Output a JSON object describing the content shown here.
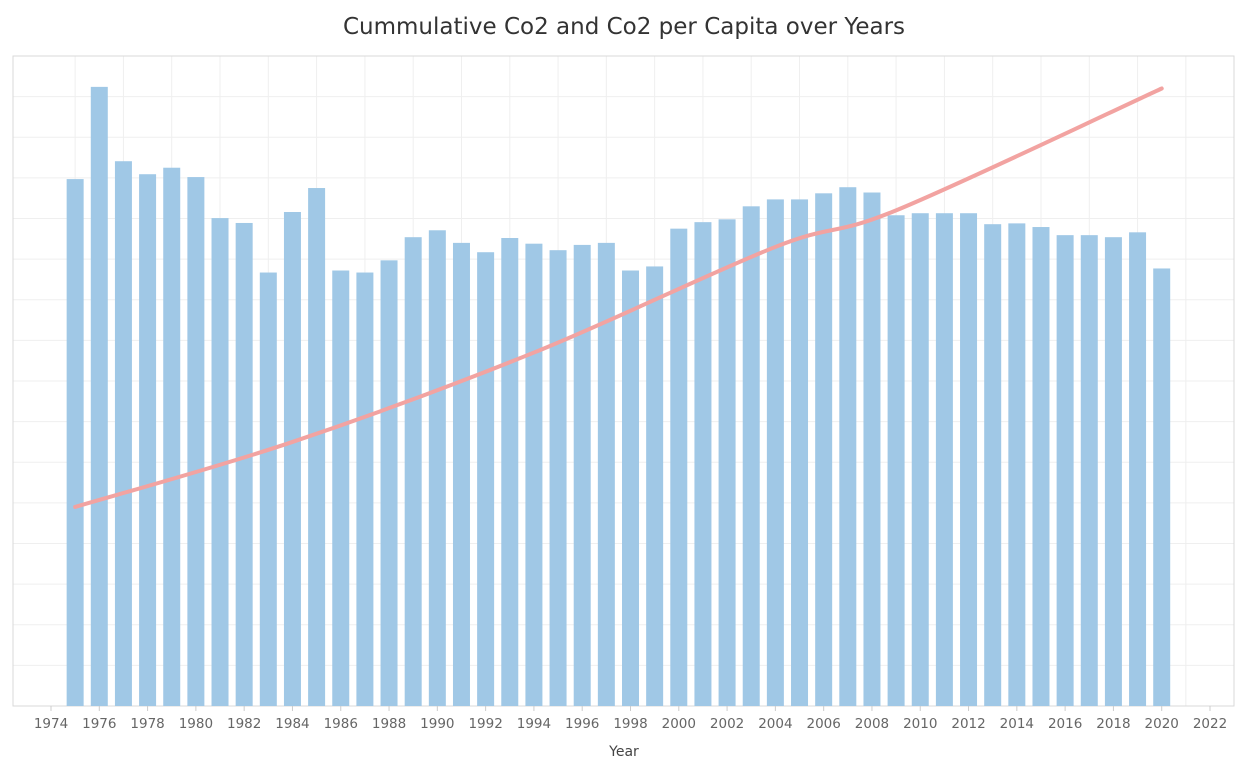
{
  "chart_data": {
    "type": "bar",
    "title": "Cummulative Co2 and Co2 per Capita over Years",
    "xlabel": "Year",
    "ylabel": "",
    "xlim": [
      1974,
      2022
    ],
    "x_ticks": [
      1974,
      1976,
      1978,
      1980,
      1982,
      1984,
      1986,
      1988,
      1990,
      1992,
      1994,
      1996,
      1998,
      2000,
      2002,
      2004,
      2006,
      2008,
      2010,
      2012,
      2014,
      2016,
      2018,
      2020,
      2022
    ],
    "ylim": [
      0,
      16
    ],
    "grid": true,
    "series": [
      {
        "name": "Co2 per Capita",
        "kind": "bar",
        "color": "#a0c8e6",
        "x": [
          1975,
          1976,
          1977,
          1978,
          1979,
          1980,
          1981,
          1982,
          1983,
          1984,
          1985,
          1986,
          1987,
          1988,
          1989,
          1990,
          1991,
          1992,
          1993,
          1994,
          1995,
          1996,
          1997,
          1998,
          1999,
          2000,
          2001,
          2002,
          2003,
          2004,
          2005,
          2006,
          2007,
          2008,
          2009,
          2010,
          2011,
          2012,
          2013,
          2014,
          2015,
          2016,
          2017,
          2018,
          2019,
          2020
        ],
        "values": [
          12.97,
          15.24,
          13.41,
          13.09,
          13.25,
          13.02,
          12.01,
          11.89,
          10.67,
          12.16,
          12.75,
          10.72,
          10.67,
          10.97,
          11.54,
          11.71,
          11.4,
          11.17,
          11.52,
          11.38,
          11.22,
          11.35,
          11.4,
          10.72,
          10.82,
          11.75,
          11.91,
          11.98,
          12.3,
          12.47,
          12.47,
          12.62,
          12.77,
          12.64,
          12.08,
          12.13,
          12.13,
          12.13,
          11.86,
          11.88,
          11.79,
          11.59,
          11.59,
          11.54,
          11.66,
          10.77
        ]
      },
      {
        "name": "Cummulative Co2",
        "kind": "line",
        "color": "#f2a3a1",
        "x": [
          1975,
          1984,
          1994,
          2004,
          2009,
          2020
        ],
        "values": [
          4.9,
          6.5,
          8.7,
          11.3,
          12.2,
          15.2
        ]
      }
    ]
  }
}
